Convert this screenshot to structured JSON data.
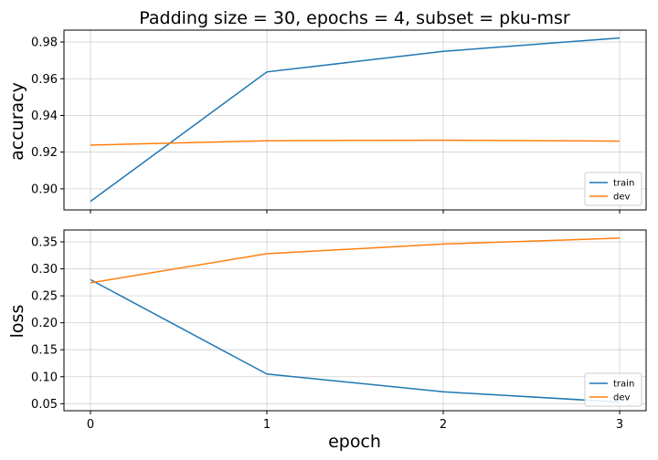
{
  "chart_data": [
    {
      "type": "line",
      "title": "Padding size = 30, epochs = 4, subset = pku-msr",
      "xlabel": "",
      "ylabel": "accuracy",
      "x": [
        0,
        1,
        2,
        3
      ],
      "xlim": [
        -0.15,
        3.15
      ],
      "ylim": [
        0.8885,
        0.9865
      ],
      "yticks": [
        "0.90",
        "0.92",
        "0.94",
        "0.96",
        "0.98"
      ],
      "ytick_values": [
        0.9,
        0.92,
        0.94,
        0.96,
        0.98
      ],
      "xticks": [
        "0",
        "1",
        "2",
        "3"
      ],
      "show_xtick_labels": false,
      "grid": true,
      "legend_position": "lower-right",
      "series": [
        {
          "name": "train",
          "color": "#1f77b4",
          "values": [
            0.8932,
            0.9637,
            0.9749,
            0.9822
          ]
        },
        {
          "name": "dev",
          "color": "#ff7f0e",
          "values": [
            0.9238,
            0.9262,
            0.9265,
            0.926
          ]
        }
      ]
    },
    {
      "type": "line",
      "title": "",
      "xlabel": "epoch",
      "ylabel": "loss",
      "x": [
        0,
        1,
        2,
        3
      ],
      "xlim": [
        -0.15,
        3.15
      ],
      "ylim": [
        0.037,
        0.372
      ],
      "yticks": [
        "0.05",
        "0.10",
        "0.15",
        "0.20",
        "0.25",
        "0.30",
        "0.35"
      ],
      "ytick_values": [
        0.05,
        0.1,
        0.15,
        0.2,
        0.25,
        0.3,
        0.35
      ],
      "xticks": [
        "0",
        "1",
        "2",
        "3"
      ],
      "show_xtick_labels": true,
      "grid": true,
      "legend_position": "lower-right",
      "series": [
        {
          "name": "train",
          "color": "#1f77b4",
          "values": [
            0.28,
            0.105,
            0.072,
            0.053
          ]
        },
        {
          "name": "dev",
          "color": "#ff7f0e",
          "values": [
            0.274,
            0.328,
            0.346,
            0.357
          ]
        }
      ]
    }
  ]
}
